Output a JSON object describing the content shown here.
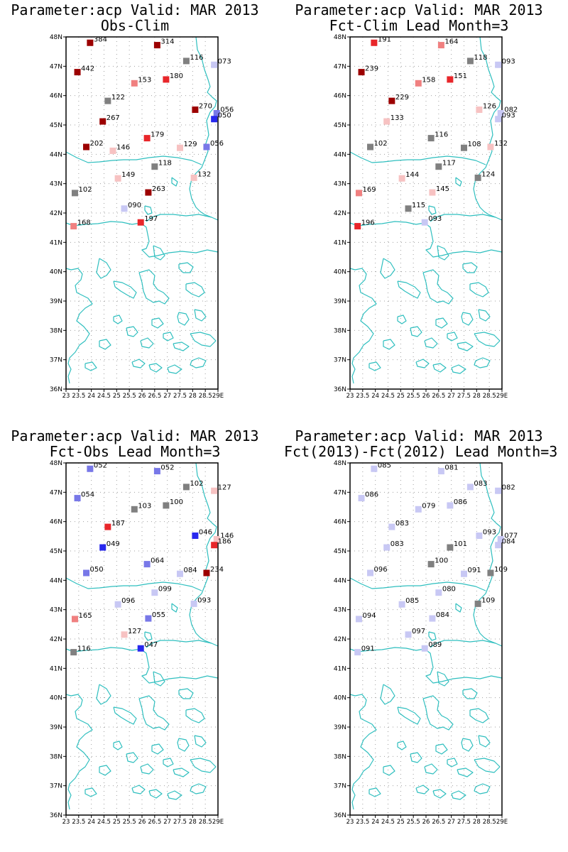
{
  "colors": {
    "coast": "#2fbfbf",
    "grid": "#a0a0a0",
    "frame": "#000000",
    "dark_red": "#9c0000",
    "red": "#e8262a",
    "salmon": "#f08080",
    "pink": "#f7c2c2",
    "gray": "#808080",
    "lavender": "#c8c8f4",
    "mid_blue": "#7878e8",
    "blue": "#2828ee"
  },
  "axes": {
    "lat_labels": [
      "48N",
      "47N",
      "46N",
      "45N",
      "44N",
      "43N",
      "42N",
      "41N",
      "40N",
      "39N",
      "38N",
      "37N",
      "36N"
    ],
    "lon_labels": [
      "23",
      "23.5",
      "24",
      "24.5",
      "25",
      "25.5",
      "26",
      "26.5",
      "27",
      "27.5",
      "28",
      "28.5",
      "29E"
    ]
  },
  "chart_data": [
    {
      "type": "scatter",
      "title": "Parameter:acp Valid: MAR 2013",
      "subtitle": "Obs-Clim",
      "xlim": [
        23,
        29
      ],
      "ylim": [
        36,
        48
      ],
      "grid": true,
      "points": [
        {
          "lon": 23.95,
          "lat": 47.8,
          "label": "384",
          "color": "dark_red"
        },
        {
          "lon": 26.6,
          "lat": 47.72,
          "label": "314",
          "color": "dark_red"
        },
        {
          "lon": 27.75,
          "lat": 47.18,
          "label": "116",
          "color": "gray"
        },
        {
          "lon": 28.85,
          "lat": 47.05,
          "label": "073",
          "color": "lavender"
        },
        {
          "lon": 23.45,
          "lat": 46.8,
          "label": "442",
          "color": "dark_red"
        },
        {
          "lon": 26.95,
          "lat": 46.55,
          "label": "180",
          "color": "red"
        },
        {
          "lon": 25.7,
          "lat": 46.42,
          "label": "153",
          "color": "salmon"
        },
        {
          "lon": 24.65,
          "lat": 45.82,
          "label": "122",
          "color": "gray"
        },
        {
          "lon": 28.1,
          "lat": 45.52,
          "label": "270",
          "color": "dark_red"
        },
        {
          "lon": 28.95,
          "lat": 45.4,
          "label": "056",
          "color": "mid_blue"
        },
        {
          "lon": 28.85,
          "lat": 45.2,
          "label": "050",
          "color": "blue"
        },
        {
          "lon": 24.45,
          "lat": 45.12,
          "label": "267",
          "color": "dark_red"
        },
        {
          "lon": 26.2,
          "lat": 44.55,
          "label": "179",
          "color": "red"
        },
        {
          "lon": 23.8,
          "lat": 44.25,
          "label": "202",
          "color": "dark_red"
        },
        {
          "lon": 24.85,
          "lat": 44.12,
          "label": "146",
          "color": "pink"
        },
        {
          "lon": 27.5,
          "lat": 44.22,
          "label": "129",
          "color": "pink"
        },
        {
          "lon": 28.55,
          "lat": 44.25,
          "label": "056",
          "color": "mid_blue"
        },
        {
          "lon": 26.5,
          "lat": 43.58,
          "label": "118",
          "color": "gray"
        },
        {
          "lon": 25.05,
          "lat": 43.18,
          "label": "149",
          "color": "pink"
        },
        {
          "lon": 28.05,
          "lat": 43.2,
          "label": "132",
          "color": "pink"
        },
        {
          "lon": 23.35,
          "lat": 42.68,
          "label": "102",
          "color": "gray"
        },
        {
          "lon": 26.25,
          "lat": 42.7,
          "label": "263",
          "color": "dark_red"
        },
        {
          "lon": 25.3,
          "lat": 42.15,
          "label": "090",
          "color": "lavender"
        },
        {
          "lon": 25.95,
          "lat": 41.68,
          "label": "197",
          "color": "red"
        },
        {
          "lon": 23.3,
          "lat": 41.55,
          "label": "168",
          "color": "salmon"
        }
      ]
    },
    {
      "type": "scatter",
      "title": "Parameter:acp Valid: MAR 2013",
      "subtitle": "Fct-Clim Lead Month=3",
      "xlim": [
        23,
        29
      ],
      "ylim": [
        36,
        48
      ],
      "grid": true,
      "points": [
        {
          "lon": 23.95,
          "lat": 47.8,
          "label": "191",
          "color": "red"
        },
        {
          "lon": 26.6,
          "lat": 47.72,
          "label": "164",
          "color": "salmon"
        },
        {
          "lon": 27.75,
          "lat": 47.18,
          "label": "118",
          "color": "gray"
        },
        {
          "lon": 28.85,
          "lat": 47.05,
          "label": "093",
          "color": "lavender"
        },
        {
          "lon": 23.45,
          "lat": 46.8,
          "label": "239",
          "color": "dark_red"
        },
        {
          "lon": 26.95,
          "lat": 46.55,
          "label": "151",
          "color": "red"
        },
        {
          "lon": 25.7,
          "lat": 46.42,
          "label": "158",
          "color": "salmon"
        },
        {
          "lon": 24.65,
          "lat": 45.82,
          "label": "229",
          "color": "dark_red"
        },
        {
          "lon": 28.1,
          "lat": 45.52,
          "label": "126",
          "color": "pink"
        },
        {
          "lon": 28.95,
          "lat": 45.4,
          "label": "082",
          "color": "lavender"
        },
        {
          "lon": 28.85,
          "lat": 45.2,
          "label": "093",
          "color": "lavender"
        },
        {
          "lon": 24.45,
          "lat": 45.12,
          "label": "133",
          "color": "pink"
        },
        {
          "lon": 26.2,
          "lat": 44.55,
          "label": "116",
          "color": "gray"
        },
        {
          "lon": 23.8,
          "lat": 44.25,
          "label": "102",
          "color": "gray"
        },
        {
          "lon": 27.5,
          "lat": 44.22,
          "label": "108",
          "color": "gray"
        },
        {
          "lon": 28.55,
          "lat": 44.25,
          "label": "132",
          "color": "pink"
        },
        {
          "lon": 26.5,
          "lat": 43.58,
          "label": "117",
          "color": "gray"
        },
        {
          "lon": 25.05,
          "lat": 43.18,
          "label": "144",
          "color": "pink"
        },
        {
          "lon": 28.05,
          "lat": 43.2,
          "label": "124",
          "color": "gray"
        },
        {
          "lon": 23.35,
          "lat": 42.68,
          "label": "169",
          "color": "salmon"
        },
        {
          "lon": 26.25,
          "lat": 42.7,
          "label": "145",
          "color": "pink"
        },
        {
          "lon": 25.3,
          "lat": 42.15,
          "label": "115",
          "color": "gray"
        },
        {
          "lon": 25.95,
          "lat": 41.68,
          "label": "093",
          "color": "lavender"
        },
        {
          "lon": 23.3,
          "lat": 41.55,
          "label": "196",
          "color": "red"
        }
      ]
    },
    {
      "type": "scatter",
      "title": "Parameter:acp Valid: MAR 2013",
      "subtitle": "Fct-Obs Lead Month=3",
      "xlim": [
        23,
        29
      ],
      "ylim": [
        36,
        48
      ],
      "grid": true,
      "points": [
        {
          "lon": 23.95,
          "lat": 47.8,
          "label": "052",
          "color": "mid_blue"
        },
        {
          "lon": 26.6,
          "lat": 47.72,
          "label": "052",
          "color": "mid_blue"
        },
        {
          "lon": 27.75,
          "lat": 47.18,
          "label": "102",
          "color": "gray"
        },
        {
          "lon": 28.85,
          "lat": 47.05,
          "label": "127",
          "color": "pink"
        },
        {
          "lon": 23.45,
          "lat": 46.8,
          "label": "054",
          "color": "mid_blue"
        },
        {
          "lon": 26.95,
          "lat": 46.55,
          "label": "100",
          "color": "gray"
        },
        {
          "lon": 25.7,
          "lat": 46.42,
          "label": "103",
          "color": "gray"
        },
        {
          "lon": 24.65,
          "lat": 45.82,
          "label": "187",
          "color": "red"
        },
        {
          "lon": 28.1,
          "lat": 45.52,
          "label": "046",
          "color": "blue"
        },
        {
          "lon": 28.95,
          "lat": 45.4,
          "label": "146",
          "color": "pink"
        },
        {
          "lon": 28.85,
          "lat": 45.2,
          "label": "186",
          "color": "red"
        },
        {
          "lon": 24.45,
          "lat": 45.12,
          "label": "049",
          "color": "blue"
        },
        {
          "lon": 26.2,
          "lat": 44.55,
          "label": "064",
          "color": "mid_blue"
        },
        {
          "lon": 23.8,
          "lat": 44.25,
          "label": "050",
          "color": "mid_blue"
        },
        {
          "lon": 27.5,
          "lat": 44.22,
          "label": "084",
          "color": "lavender"
        },
        {
          "lon": 28.55,
          "lat": 44.25,
          "label": "234",
          "color": "dark_red"
        },
        {
          "lon": 26.5,
          "lat": 43.58,
          "label": "099",
          "color": "lavender"
        },
        {
          "lon": 25.05,
          "lat": 43.18,
          "label": "096",
          "color": "lavender"
        },
        {
          "lon": 28.05,
          "lat": 43.2,
          "label": "093",
          "color": "lavender"
        },
        {
          "lon": 23.35,
          "lat": 42.68,
          "label": "165",
          "color": "salmon"
        },
        {
          "lon": 26.25,
          "lat": 42.7,
          "label": "055",
          "color": "mid_blue"
        },
        {
          "lon": 25.3,
          "lat": 42.15,
          "label": "127",
          "color": "pink"
        },
        {
          "lon": 25.95,
          "lat": 41.68,
          "label": "047",
          "color": "blue"
        },
        {
          "lon": 23.3,
          "lat": 41.55,
          "label": "116",
          "color": "gray"
        }
      ]
    },
    {
      "type": "scatter",
      "title": "Parameter:acp Valid: MAR 2013",
      "subtitle": "Fct(2013)-Fct(2012) Lead Month=3",
      "xlim": [
        23,
        29
      ],
      "ylim": [
        36,
        48
      ],
      "grid": true,
      "points": [
        {
          "lon": 23.95,
          "lat": 47.8,
          "label": "085",
          "color": "lavender"
        },
        {
          "lon": 26.6,
          "lat": 47.72,
          "label": "081",
          "color": "lavender"
        },
        {
          "lon": 27.75,
          "lat": 47.18,
          "label": "083",
          "color": "lavender"
        },
        {
          "lon": 28.85,
          "lat": 47.05,
          "label": "082",
          "color": "lavender"
        },
        {
          "lon": 23.45,
          "lat": 46.8,
          "label": "086",
          "color": "lavender"
        },
        {
          "lon": 26.95,
          "lat": 46.55,
          "label": "086",
          "color": "lavender"
        },
        {
          "lon": 25.7,
          "lat": 46.42,
          "label": "079",
          "color": "lavender"
        },
        {
          "lon": 24.65,
          "lat": 45.82,
          "label": "083",
          "color": "lavender"
        },
        {
          "lon": 28.1,
          "lat": 45.52,
          "label": "093",
          "color": "lavender"
        },
        {
          "lon": 28.95,
          "lat": 45.4,
          "label": "077",
          "color": "lavender"
        },
        {
          "lon": 28.85,
          "lat": 45.2,
          "label": "084",
          "color": "lavender"
        },
        {
          "lon": 24.45,
          "lat": 45.12,
          "label": "083",
          "color": "lavender"
        },
        {
          "lon": 26.95,
          "lat": 45.12,
          "label": "101",
          "color": "gray"
        },
        {
          "lon": 26.2,
          "lat": 44.55,
          "label": "100",
          "color": "gray"
        },
        {
          "lon": 23.8,
          "lat": 44.25,
          "label": "096",
          "color": "lavender"
        },
        {
          "lon": 27.5,
          "lat": 44.22,
          "label": "091",
          "color": "lavender"
        },
        {
          "lon": 28.55,
          "lat": 44.25,
          "label": "109",
          "color": "gray"
        },
        {
          "lon": 26.5,
          "lat": 43.58,
          "label": "080",
          "color": "lavender"
        },
        {
          "lon": 25.05,
          "lat": 43.18,
          "label": "085",
          "color": "lavender"
        },
        {
          "lon": 28.05,
          "lat": 43.2,
          "label": "109",
          "color": "gray"
        },
        {
          "lon": 23.35,
          "lat": 42.68,
          "label": "094",
          "color": "lavender"
        },
        {
          "lon": 26.25,
          "lat": 42.7,
          "label": "084",
          "color": "lavender"
        },
        {
          "lon": 25.3,
          "lat": 42.15,
          "label": "097",
          "color": "lavender"
        },
        {
          "lon": 25.95,
          "lat": 41.68,
          "label": "089",
          "color": "lavender"
        },
        {
          "lon": 23.3,
          "lat": 41.55,
          "label": "091",
          "color": "lavender"
        }
      ]
    }
  ]
}
